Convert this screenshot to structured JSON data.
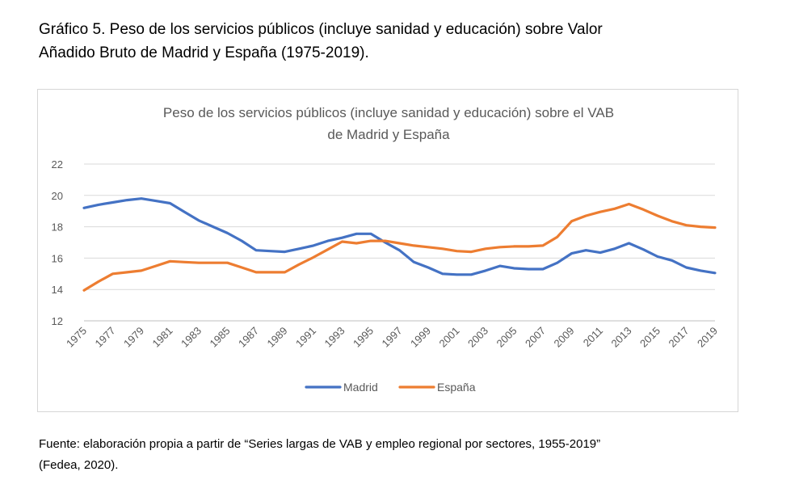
{
  "heading": {
    "line1": "Gráfico 5.  Peso de los servicios públicos (incluye sanidad y educación) sobre Valor",
    "line2": "Añadido Bruto de Madrid y España (1975-2019)."
  },
  "chart_data": {
    "type": "line",
    "title_lines": [
      "Peso de los servicios públicos (incluye sanidad y educación) sobre el VAB",
      "de Madrid y España"
    ],
    "xlabel": "",
    "ylabel": "",
    "ylim": [
      12,
      22
    ],
    "yticks": [
      12,
      14,
      16,
      18,
      20,
      22
    ],
    "grid": true,
    "legend_position": "bottom",
    "x": [
      1975,
      1976,
      1977,
      1978,
      1979,
      1980,
      1981,
      1982,
      1983,
      1984,
      1985,
      1986,
      1987,
      1988,
      1989,
      1990,
      1991,
      1992,
      1993,
      1994,
      1995,
      1996,
      1997,
      1998,
      1999,
      2000,
      2001,
      2002,
      2003,
      2004,
      2005,
      2006,
      2007,
      2008,
      2009,
      2010,
      2011,
      2012,
      2013,
      2014,
      2015,
      2016,
      2017,
      2018,
      2019
    ],
    "xtick_labels": [
      "1975",
      "1977",
      "1979",
      "1981",
      "1983",
      "1985",
      "1987",
      "1989",
      "1991",
      "1993",
      "1995",
      "1997",
      "1999",
      "2001",
      "2003",
      "2005",
      "2007",
      "2009",
      "2011",
      "2013",
      "2015",
      "2017",
      "2019"
    ],
    "series": [
      {
        "name": "Madrid",
        "color": "#4472C4",
        "values": [
          19.2,
          19.4,
          19.55,
          19.7,
          19.8,
          19.65,
          19.5,
          18.95,
          18.4,
          18.0,
          17.6,
          17.1,
          16.5,
          16.45,
          16.4,
          16.6,
          16.8,
          17.1,
          17.3,
          17.55,
          17.55,
          17.0,
          16.5,
          15.75,
          15.4,
          15.0,
          14.95,
          14.95,
          15.2,
          15.5,
          15.35,
          15.3,
          15.3,
          15.7,
          16.3,
          16.5,
          16.35,
          16.6,
          16.95,
          16.55,
          16.1,
          15.85,
          15.4,
          15.2,
          15.05
        ]
      },
      {
        "name": "España",
        "color": "#ED7D31",
        "values": [
          13.95,
          14.5,
          15.0,
          15.1,
          15.2,
          15.5,
          15.8,
          15.75,
          15.7,
          15.7,
          15.7,
          15.4,
          15.1,
          15.1,
          15.1,
          15.6,
          16.05,
          16.55,
          17.05,
          16.95,
          17.1,
          17.1,
          16.95,
          16.8,
          16.7,
          16.6,
          16.45,
          16.4,
          16.6,
          16.7,
          16.75,
          16.75,
          16.8,
          17.35,
          18.35,
          18.7,
          18.95,
          19.15,
          19.45,
          19.1,
          18.7,
          18.35,
          18.1,
          18.0,
          17.95
        ]
      }
    ]
  },
  "footnote": {
    "line1": "Fuente: elaboración propia a partir de “Series largas de VAB y empleo regional por sectores, 1955-2019”",
    "line2": "(Fedea, 2020)."
  }
}
